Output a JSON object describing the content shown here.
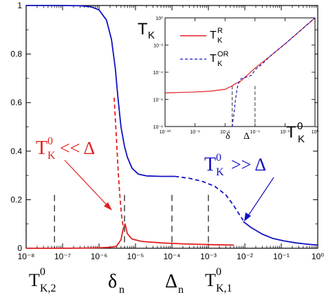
{
  "chart_data": [
    {
      "type": "line",
      "x_scale": "log",
      "xlim": [
        1e-08,
        1
      ],
      "ylim": [
        0,
        1
      ],
      "x_tick_labels": [
        "10⁻⁸",
        "10⁻⁷",
        "10⁻⁶",
        "10⁻⁵",
        "10⁻⁴",
        "10⁻³",
        "10⁻²",
        "10⁻¹",
        "10⁰"
      ],
      "y_tick_labels": [
        "0",
        "0.2",
        "0.4",
        "0.6",
        "0.8",
        "1"
      ],
      "series": [
        {
          "color": "#1010c0",
          "style": "solid",
          "points": [
            [
              1e-08,
              1.0
            ],
            [
              1e-07,
              1.0
            ],
            [
              3e-07,
              0.999
            ],
            [
              6e-07,
              0.995
            ],
            [
              1e-06,
              0.982
            ],
            [
              1.6e-06,
              0.94
            ],
            [
              2.2e-06,
              0.86
            ],
            [
              2.8e-06,
              0.74
            ],
            [
              3.3e-06,
              0.62
            ],
            [
              4e-06,
              0.5
            ],
            [
              5e-06,
              0.42
            ],
            [
              6e-06,
              0.375
            ],
            [
              8e-06,
              0.33
            ],
            [
              1.2e-05,
              0.305
            ],
            [
              2e-05,
              0.298
            ],
            [
              5e-05,
              0.296
            ],
            [
              0.00012,
              0.296
            ]
          ]
        },
        {
          "color": "#1010c0",
          "style": "dashed",
          "points": [
            [
              0.00012,
              0.296
            ],
            [
              0.0003,
              0.288
            ],
            [
              0.0007,
              0.275
            ],
            [
              0.0015,
              0.255
            ],
            [
              0.003,
              0.22
            ],
            [
              0.005,
              0.175
            ],
            [
              0.007,
              0.14
            ],
            [
              0.009,
              0.115
            ]
          ]
        },
        {
          "color": "#1010c0",
          "style": "solid",
          "points": [
            [
              0.009,
              0.11
            ],
            [
              0.015,
              0.085
            ],
            [
              0.03,
              0.058
            ],
            [
              0.06,
              0.04
            ],
            [
              0.12,
              0.03
            ],
            [
              0.25,
              0.022
            ],
            [
              0.5,
              0.017
            ],
            [
              1,
              0.013
            ]
          ]
        },
        {
          "color": "#e02020",
          "style": "solid",
          "points": [
            [
              1e-08,
              0.0
            ],
            [
              1e-07,
              0.0
            ],
            [
              5e-07,
              0.001
            ],
            [
              1e-06,
              0.002
            ],
            [
              2e-06,
              0.004
            ],
            [
              3e-06,
              0.008
            ],
            [
              4e-06,
              0.035
            ],
            [
              4.6e-06,
              0.08
            ],
            [
              5.2e-06,
              0.1
            ],
            [
              6e-06,
              0.06
            ],
            [
              8e-06,
              0.038
            ],
            [
              1.5e-05,
              0.028
            ],
            [
              5e-05,
              0.022
            ],
            [
              0.0002,
              0.018
            ],
            [
              0.001,
              0.015
            ],
            [
              0.005,
              0.013
            ]
          ]
        },
        {
          "color": "#e02020",
          "style": "dashed",
          "points": [
            [
              2.6e-06,
              0.62
            ],
            [
              3e-06,
              0.45
            ],
            [
              3.4e-06,
              0.3
            ],
            [
              3.8e-06,
              0.2
            ],
            [
              4.2e-06,
              0.13
            ],
            [
              4.6e-06,
              0.09
            ]
          ]
        }
      ],
      "markers": [
        {
          "x": 6e-08,
          "label": "T_K,2^0"
        },
        {
          "x": 5e-06,
          "label": "δ_n"
        },
        {
          "x": 0.0001,
          "label": "Δ_n"
        },
        {
          "x": 0.001,
          "label": "T_K,1^0"
        }
      ],
      "annotations": {
        "red_text": "T_K^0 << Δ",
        "blue_text": "T_K^0 >> Δ"
      }
    },
    {
      "type": "line",
      "inset": true,
      "x_scale": "log",
      "y_scale": "log",
      "xlim": [
        1e-10,
        1
      ],
      "ylim": [
        1e-08,
        1
      ],
      "x_tick_labels": [
        "10⁻¹⁰",
        "10⁻⁸",
        "10⁻⁶",
        "10⁻⁴",
        "10⁻²",
        "10⁰"
      ],
      "y_tick_labels": [
        "10⁻⁸",
        "10⁻⁶",
        "10⁻⁴",
        "10⁻²",
        "10⁰"
      ],
      "ylabel": "T_K",
      "xlabel": "T_K^0",
      "legend": "top-left",
      "series": [
        {
          "name": "T_K^R",
          "color": "#e02020",
          "style": "solid",
          "points": [
            [
              1e-10,
              3e-06
            ],
            [
              1e-08,
              3.5e-06
            ],
            [
              1e-07,
              4e-06
            ],
            [
              1e-06,
              5.5e-06
            ],
            [
              3e-06,
              1e-05
            ],
            [
              6e-06,
              1.6e-05
            ],
            [
              1e-05,
              2e-05
            ],
            [
              3e-05,
              6e-05
            ],
            [
              0.0001,
              0.0002
            ],
            [
              0.001,
              0.0015
            ],
            [
              0.01,
              0.012
            ],
            [
              0.1,
              0.11
            ],
            [
              1,
              1
            ]
          ]
        },
        {
          "name": "T_K^OR",
          "color": "#1010c0",
          "style": "dashed",
          "points": [
            [
              3e-06,
              1e-08
            ],
            [
              4e-06,
              1e-07
            ],
            [
              5e-06,
              1e-06
            ],
            [
              7e-06,
              1e-05
            ],
            [
              1e-05,
              3e-05
            ],
            [
              2e-05,
              4e-05
            ],
            [
              6e-05,
              6e-05
            ],
            [
              0.0001,
              0.00015
            ],
            [
              0.0003,
              0.0004
            ],
            [
              0.001,
              0.0015
            ],
            [
              0.01,
              0.012
            ],
            [
              0.1,
              0.11
            ],
            [
              1,
              1
            ]
          ]
        }
      ],
      "markers": [
        {
          "x": 3e-06,
          "label": "δ"
        },
        {
          "x": 0.0001,
          "label": "Δ"
        }
      ]
    }
  ]
}
